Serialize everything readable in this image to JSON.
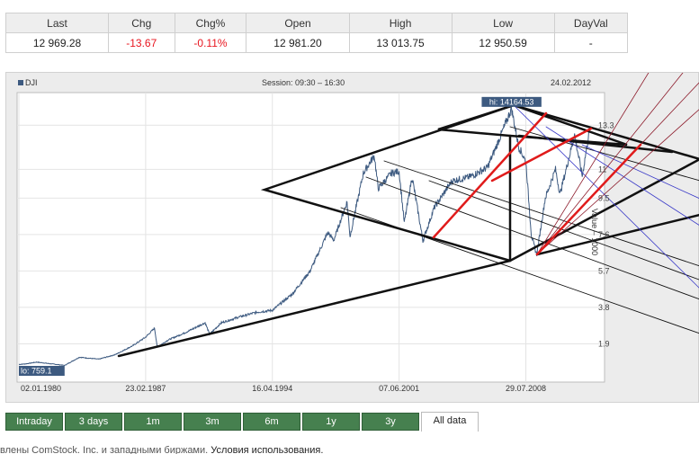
{
  "quote": {
    "headers": [
      "Last",
      "Chg",
      "Chg%",
      "Open",
      "High",
      "Low",
      "DayVal"
    ],
    "values": [
      "12 969.28",
      "-13.67",
      "-0.11%",
      "12 981.20",
      "13 013.75",
      "12 950.59",
      "-"
    ]
  },
  "chart_header": {
    "symbol": "DJI",
    "session": "Session: 09:30 – 16:30",
    "date": "24.02.2012"
  },
  "chart_data": {
    "type": "line",
    "series": [
      {
        "name": "DJI",
        "color": "#3d5a80"
      }
    ],
    "x_ticks": [
      "02.01.1980",
      "23.02.1987",
      "16.04.1994",
      "07.06.2001",
      "29.07.2008"
    ],
    "x_range": [
      "02.01.1980",
      "24.02.2012"
    ],
    "y_ticks": [
      "13.3",
      "11",
      "9.5",
      "7.6",
      "5.7",
      "3.8",
      "1.9"
    ],
    "ylabel": "Value – 1000",
    "ylim": [
      0,
      15000
    ],
    "hi_label": "hi: 14164.53",
    "lo_label": "lo: 759.1",
    "points": [
      [
        "1980-01-02",
        824
      ],
      [
        "1980-06-01",
        860
      ],
      [
        "1981-01-01",
        947
      ],
      [
        "1982-08-01",
        776
      ],
      [
        "1983-06-01",
        1200
      ],
      [
        "1984-07-01",
        1100
      ],
      [
        "1985-06-01",
        1330
      ],
      [
        "1986-06-01",
        1800
      ],
      [
        "1987-02-23",
        2250
      ],
      [
        "1987-08-25",
        2720
      ],
      [
        "1987-10-20",
        1740
      ],
      [
        "1988-06-01",
        2100
      ],
      [
        "1989-06-01",
        2500
      ],
      [
        "1990-07-01",
        2999
      ],
      [
        "1990-10-01",
        2400
      ],
      [
        "1991-06-01",
        3000
      ],
      [
        "1992-06-01",
        3300
      ],
      [
        "1993-06-01",
        3550
      ],
      [
        "1994-04-16",
        3650
      ],
      [
        "1995-06-01",
        4500
      ],
      [
        "1996-06-01",
        5700
      ],
      [
        "1997-06-01",
        7700
      ],
      [
        "1997-10-01",
        7300
      ],
      [
        "1998-07-01",
        9300
      ],
      [
        "1998-09-01",
        7500
      ],
      [
        "1999-06-01",
        10800
      ],
      [
        "2000-01-14",
        11720
      ],
      [
        "2000-04-01",
        10000
      ],
      [
        "2001-01-01",
        10800
      ],
      [
        "2001-06-07",
        10900
      ],
      [
        "2001-09-21",
        8200
      ],
      [
        "2002-03-01",
        10600
      ],
      [
        "2002-10-09",
        7280
      ],
      [
        "2003-06-01",
        9000
      ],
      [
        "2004-06-01",
        10400
      ],
      [
        "2005-06-01",
        10600
      ],
      [
        "2006-06-01",
        11100
      ],
      [
        "2007-01-01",
        12400
      ],
      [
        "2007-10-09",
        14164
      ],
      [
        "2008-03-01",
        12200
      ],
      [
        "2008-07-29",
        11400
      ],
      [
        "2008-11-20",
        7550
      ],
      [
        "2009-03-09",
        6547
      ],
      [
        "2009-09-01",
        9500
      ],
      [
        "2010-04-01",
        11000
      ],
      [
        "2010-07-01",
        9700
      ],
      [
        "2011-04-29",
        12800
      ],
      [
        "2011-10-03",
        10650
      ],
      [
        "2012-02-24",
        12969
      ]
    ]
  },
  "tabs": [
    "Intraday",
    "3 days",
    "1m",
    "3m",
    "6m",
    "1y",
    "3y",
    "All data"
  ],
  "active_tab": "All data",
  "footer": {
    "text": "влены ComStock. Inc. и западными биржами. ",
    "link": "Условия использования."
  }
}
